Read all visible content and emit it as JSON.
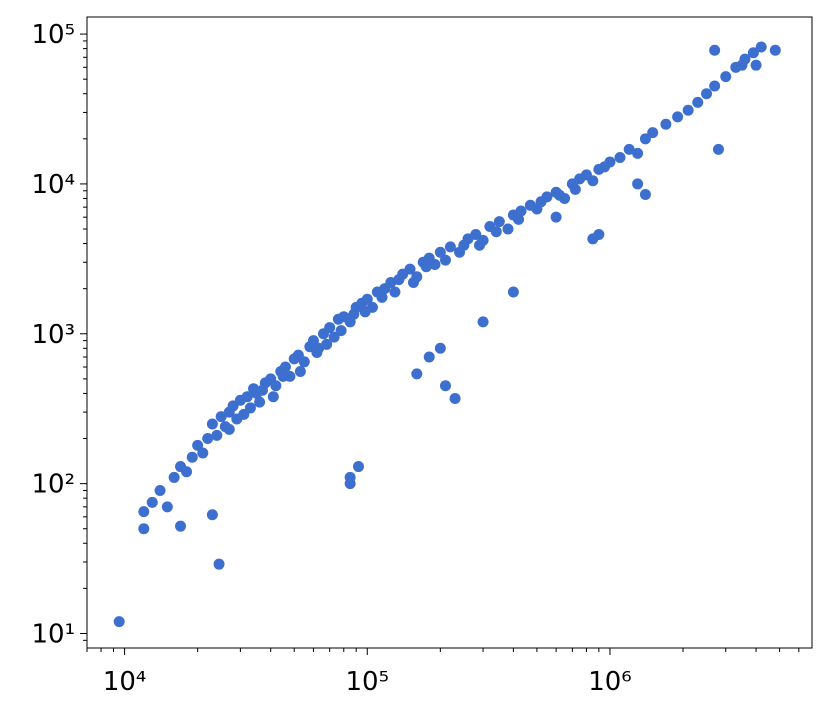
{
  "chart_data": {
    "type": "scatter",
    "color": "#3d6fcf",
    "xscale": "log",
    "yscale": "log",
    "xlim": [
      7000,
      6800000
    ],
    "ylim": [
      8,
      130000
    ],
    "xticks": [
      {
        "value": 10000,
        "label": "10⁴"
      },
      {
        "value": 100000,
        "label": "10⁵"
      },
      {
        "value": 1000000,
        "label": "10⁶"
      }
    ],
    "yticks": [
      {
        "value": 10,
        "label": "10¹"
      },
      {
        "value": 100,
        "label": "10²"
      },
      {
        "value": 1000,
        "label": "10³"
      },
      {
        "value": 10000,
        "label": "10⁴"
      },
      {
        "value": 100000,
        "label": "10⁵"
      }
    ],
    "xminorticks": [
      7000,
      8000,
      9000,
      20000,
      30000,
      40000,
      50000,
      60000,
      70000,
      80000,
      90000,
      200000,
      300000,
      400000,
      500000,
      600000,
      700000,
      800000,
      900000,
      2000000,
      3000000,
      4000000,
      5000000,
      6000000
    ],
    "yminorticks": [
      9,
      20,
      30,
      40,
      50,
      60,
      70,
      80,
      90,
      200,
      300,
      400,
      500,
      600,
      700,
      800,
      900,
      2000,
      3000,
      4000,
      5000,
      6000,
      7000,
      8000,
      9000,
      20000,
      30000,
      40000,
      50000,
      60000,
      70000,
      80000,
      90000
    ],
    "x": [
      9500,
      24500,
      12000,
      12000,
      17000,
      23000,
      85000,
      92000,
      85000,
      180000,
      210000,
      230000,
      160000,
      200000,
      300000,
      400000,
      900000,
      850000,
      1400000,
      2800000,
      1300000,
      600000,
      13000,
      14000,
      15000,
      16000,
      17000,
      18000,
      19000,
      20000,
      21000,
      22000,
      23000,
      24000,
      25000,
      26000,
      27000,
      28000,
      29000,
      30000,
      32000,
      33000,
      34000,
      35000,
      36000,
      38000,
      40000,
      42000,
      44000,
      46000,
      48000,
      50000,
      52000,
      55000,
      58000,
      60000,
      63000,
      66000,
      70000,
      73000,
      76000,
      80000,
      85000,
      90000,
      95000,
      100000,
      105000,
      110000,
      118000,
      125000,
      130000,
      140000,
      150000,
      160000,
      170000,
      180000,
      190000,
      200000,
      220000,
      240000,
      260000,
      280000,
      300000,
      320000,
      350000,
      380000,
      400000,
      430000,
      470000,
      500000,
      550000,
      600000,
      650000,
      700000,
      750000,
      800000,
      900000,
      1000000,
      1100000,
      1200000,
      1300000,
      1400000,
      1500000,
      1700000,
      1900000,
      2100000,
      2300000,
      2500000,
      2700000,
      3000000,
      3300000,
      3600000,
      3900000,
      4200000,
      4800000,
      2700000,
      3500000,
      4000000,
      27000,
      31000,
      37000,
      41000,
      45000,
      53000,
      62000,
      68000,
      78000,
      88000,
      98000,
      115000,
      135000,
      155000,
      175000,
      210000,
      250000,
      290000,
      340000,
      420000,
      520000,
      620000,
      720000,
      850000,
      950000
    ],
    "y": [
      12,
      29,
      65,
      50,
      52,
      62,
      110,
      130,
      100,
      700,
      450,
      370,
      540,
      800,
      1200,
      1900,
      4600,
      4300,
      8500,
      17000,
      10000,
      6000,
      75,
      90,
      70,
      110,
      130,
      120,
      150,
      180,
      160,
      200,
      250,
      210,
      280,
      240,
      300,
      330,
      270,
      360,
      380,
      320,
      430,
      400,
      350,
      470,
      500,
      450,
      560,
      600,
      520,
      680,
      720,
      650,
      820,
      900,
      800,
      1000,
      1100,
      950,
      1250,
      1300,
      1200,
      1500,
      1600,
      1700,
      1500,
      1900,
      2000,
      2200,
      1900,
      2500,
      2700,
      2400,
      3000,
      3200,
      2900,
      3500,
      3800,
      3500,
      4300,
      4600,
      4200,
      5200,
      5600,
      5000,
      6200,
      6600,
      7200,
      6800,
      8200,
      8800,
      8000,
      10000,
      10800,
      11500,
      12500,
      14000,
      15000,
      17000,
      16000,
      20000,
      22000,
      25000,
      28000,
      31000,
      35000,
      40000,
      45000,
      52000,
      60000,
      68000,
      75000,
      82000,
      78000,
      78000,
      62000,
      62000,
      230,
      290,
      420,
      380,
      520,
      560,
      750,
      850,
      1050,
      1350,
      1400,
      1750,
      2300,
      2200,
      2800,
      3100,
      3900,
      3900,
      4800,
      5800,
      7600,
      8400,
      9200,
      10500,
      13000
    ]
  }
}
